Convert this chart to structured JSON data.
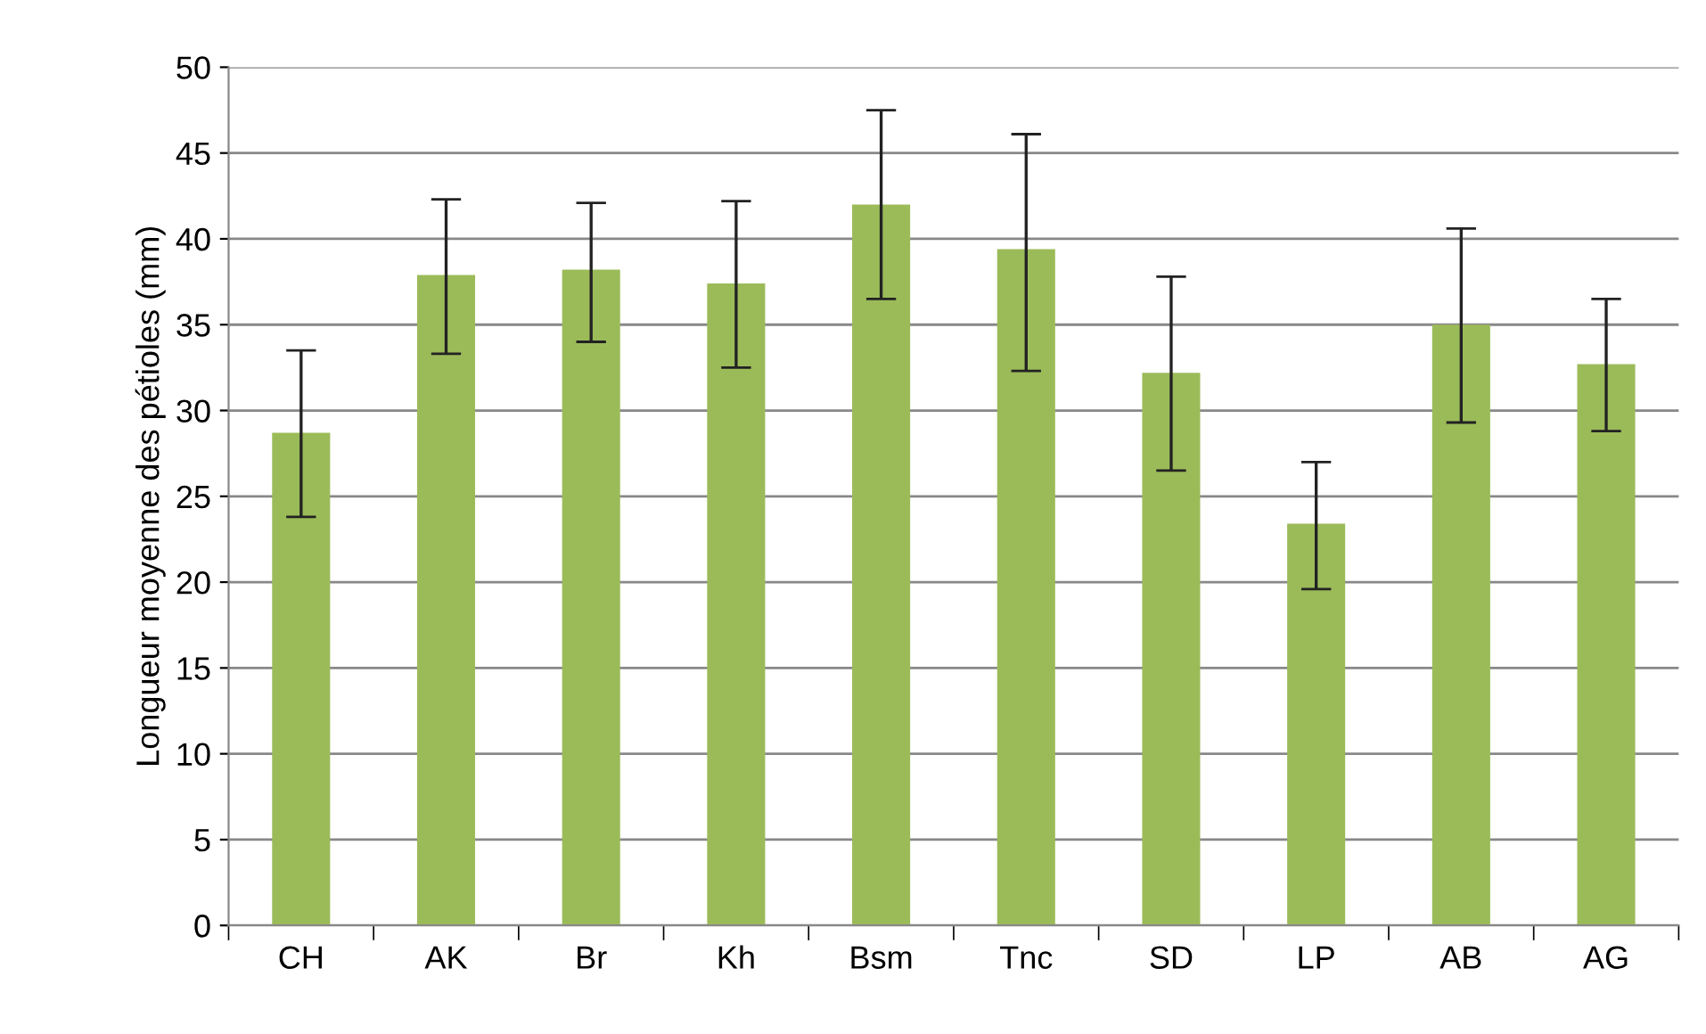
{
  "chart_data": {
    "type": "bar",
    "ylabel": "Longueur moyenne des pétioles (mm)",
    "categories": [
      "CH",
      "AK",
      "Br",
      "Kh",
      "Bsm",
      "Tnc",
      "SD",
      "LP",
      "AB",
      "AG"
    ],
    "values": [
      28.7,
      37.9,
      38.2,
      37.4,
      42.0,
      39.4,
      32.2,
      23.4,
      35.0,
      32.7
    ],
    "errors": [
      [
        23.8,
        33.5
      ],
      [
        33.3,
        42.3
      ],
      [
        34.0,
        42.1
      ],
      [
        32.5,
        42.2
      ],
      [
        36.5,
        47.5
      ],
      [
        32.3,
        46.1
      ],
      [
        26.5,
        37.8
      ],
      [
        19.6,
        27.0
      ],
      [
        29.3,
        40.6
      ],
      [
        28.8,
        36.5
      ]
    ],
    "color": "#9bbb59",
    "ylim": [
      0,
      50
    ],
    "yticks": [
      0,
      5,
      10,
      15,
      20,
      25,
      30,
      35,
      40,
      45,
      50
    ],
    "grid": "y"
  }
}
